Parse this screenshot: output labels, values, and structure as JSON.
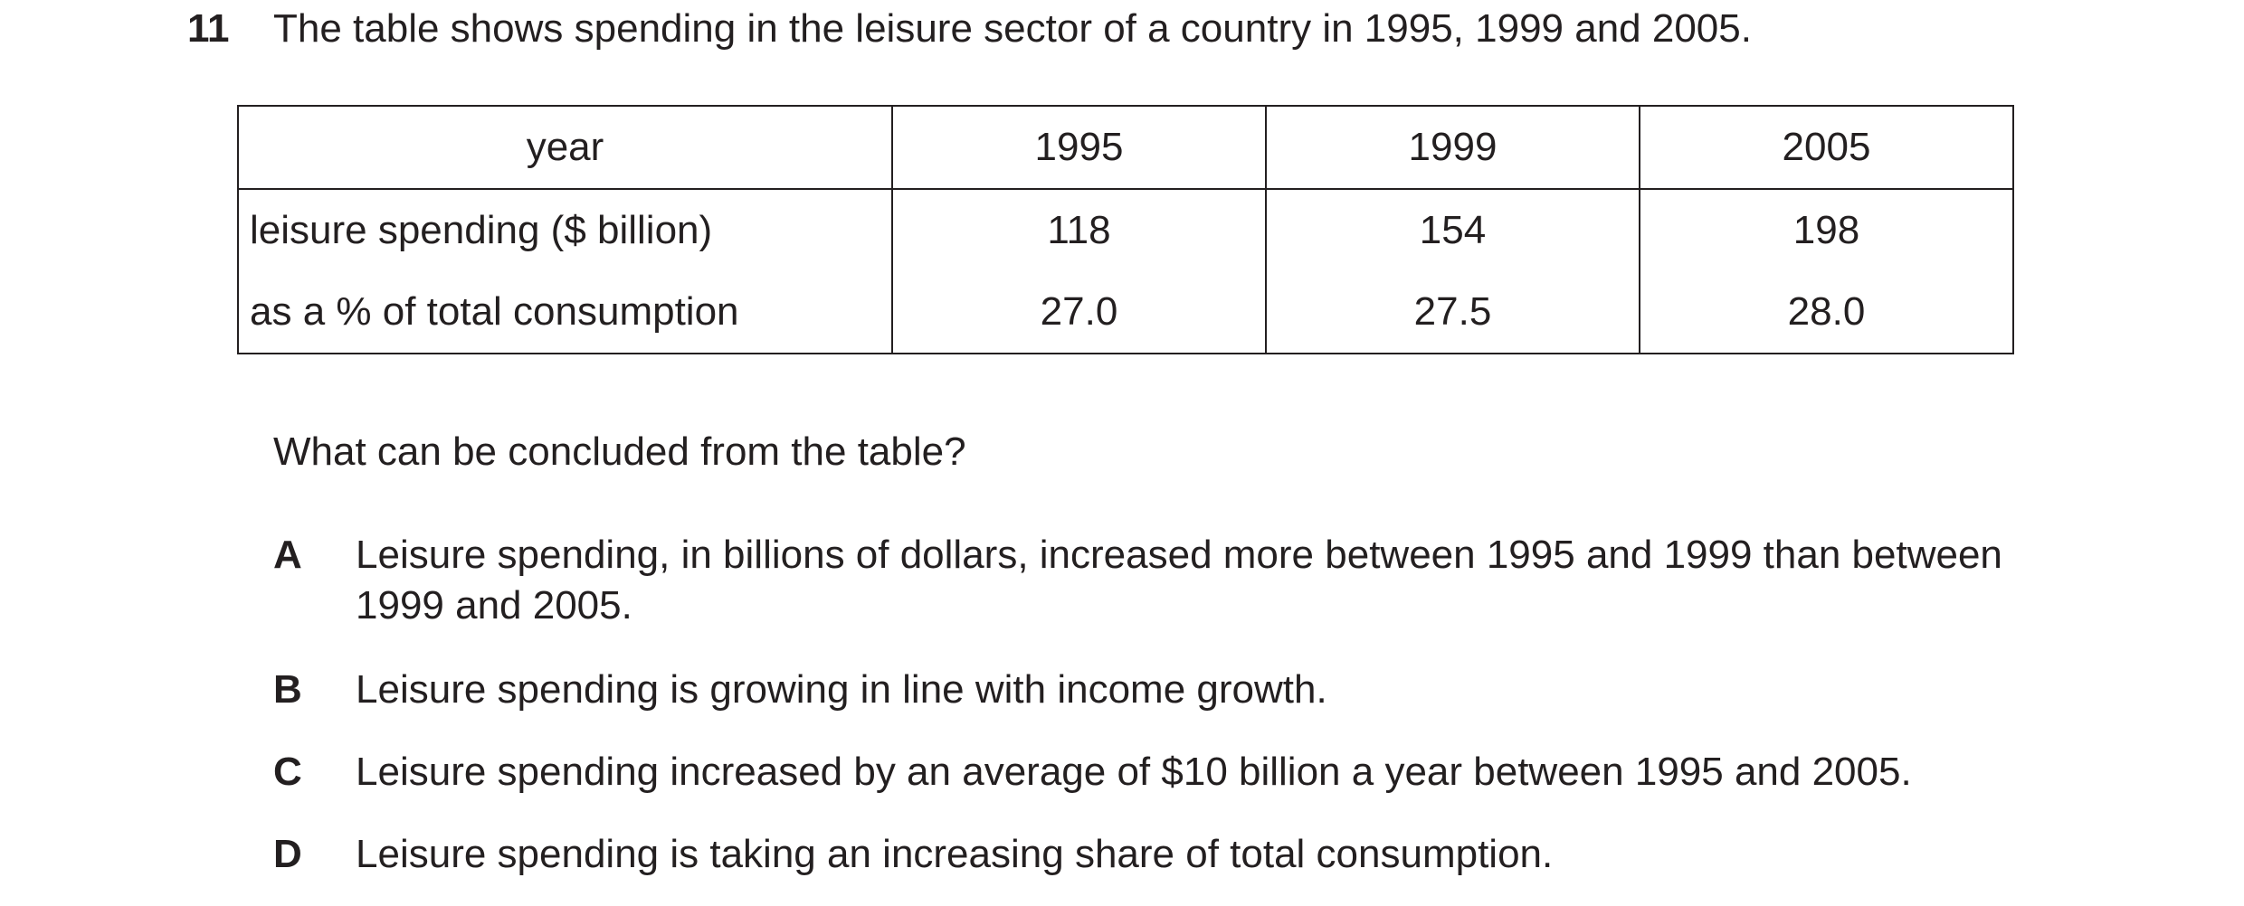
{
  "question": {
    "number": "11",
    "stem": "The table shows spending in the leisure sector of a country in 1995, 1999 and 2005.",
    "prompt": "What can be concluded from the table?"
  },
  "table": {
    "header": {
      "label": "year",
      "years": [
        "1995",
        "1999",
        "2005"
      ]
    },
    "rows": [
      {
        "label": "leisure spending ($ billion)",
        "values": [
          "118",
          "154",
          "198"
        ]
      },
      {
        "label": "as a % of total consumption",
        "values": [
          "27.0",
          "27.5",
          "28.0"
        ]
      }
    ]
  },
  "options": [
    {
      "letter": "A",
      "text": "Leisure spending, in billions of dollars, increased more between 1995 and 1999 than between 1999 and 2005."
    },
    {
      "letter": "B",
      "text": "Leisure spending is growing in line with income growth."
    },
    {
      "letter": "C",
      "text": "Leisure spending increased by an average of $10 billion a year between 1995 and 2005."
    },
    {
      "letter": "D",
      "text": "Leisure spending is taking an increasing share of total consumption."
    }
  ]
}
